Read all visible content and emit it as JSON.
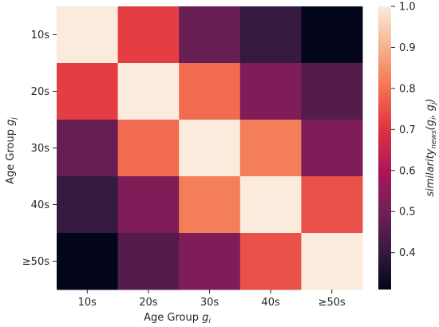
{
  "chart_data": {
    "type": "heatmap",
    "x_categories": [
      "10s",
      "20s",
      "30s",
      "40s",
      "≥50s"
    ],
    "y_categories": [
      "10s",
      "20s",
      "30s",
      "40s",
      "≥50s"
    ],
    "values": [
      [
        1.0,
        0.72,
        0.48,
        0.4,
        0.31
      ],
      [
        0.72,
        1.0,
        0.79,
        0.52,
        0.45
      ],
      [
        0.48,
        0.79,
        1.0,
        0.82,
        0.52
      ],
      [
        0.4,
        0.52,
        0.82,
        1.0,
        0.75
      ],
      [
        0.31,
        0.45,
        0.52,
        0.75,
        1.0
      ]
    ],
    "xlabel": {
      "main": "Age Group ",
      "var": "g",
      "sub": "i"
    },
    "ylabel": {
      "main": "Age Group ",
      "var": "g",
      "sub": "j"
    },
    "colorbar": {
      "min": 0.31,
      "max": 1.0,
      "ticks": [
        "0.4",
        "0.5",
        "0.6",
        "0.7",
        "0.8",
        "0.9",
        "1.0"
      ],
      "label": {
        "main": "similarity",
        "sub": "news",
        "args": "(g",
        "sub_i": "i",
        "comma": ", g",
        "sub_j": "j",
        "close": ")"
      }
    },
    "colormap": "rocket",
    "grid": false
  }
}
